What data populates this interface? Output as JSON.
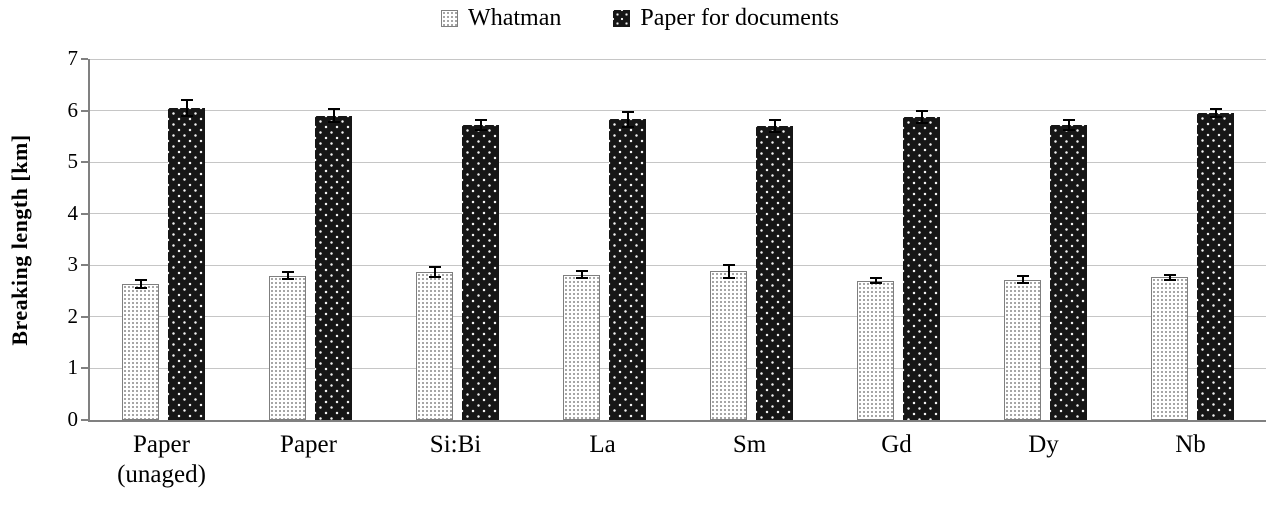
{
  "chart_data": {
    "type": "bar",
    "title": "",
    "ylabel": "Breaking length [km]",
    "xlabel": "",
    "ylim": [
      0,
      7
    ],
    "yticks": [
      0,
      1,
      2,
      3,
      4,
      5,
      6,
      7
    ],
    "grid": true,
    "legend_position": "top",
    "categories": [
      "Paper\n(unaged)",
      "Paper",
      "Si:Bi",
      "La",
      "Sm",
      "Gd",
      "Dy",
      "Nb"
    ],
    "series": [
      {
        "name": "Whatman",
        "style": "light-dotted",
        "values": [
          2.63,
          2.8,
          2.87,
          2.82,
          2.88,
          2.7,
          2.72,
          2.77
        ],
        "errors": [
          0.08,
          0.07,
          0.09,
          0.07,
          0.12,
          0.05,
          0.07,
          0.05
        ]
      },
      {
        "name": "Paper for documents",
        "style": "dark-dotted",
        "values": [
          6.05,
          5.9,
          5.72,
          5.83,
          5.7,
          5.87,
          5.72,
          5.95
        ],
        "errors": [
          0.15,
          0.13,
          0.09,
          0.15,
          0.12,
          0.12,
          0.09,
          0.08
        ]
      }
    ]
  },
  "colors": {
    "light_bar_bg": "#ffffff",
    "light_bar_dot": "#8f8f8f",
    "light_bar_border": "#7f7f7f",
    "dark_bar_bg": "#161616",
    "dark_bar_dot": "#ffffff",
    "gridline": "#c6c6c6",
    "axis": "#808080",
    "text": "#000000"
  }
}
